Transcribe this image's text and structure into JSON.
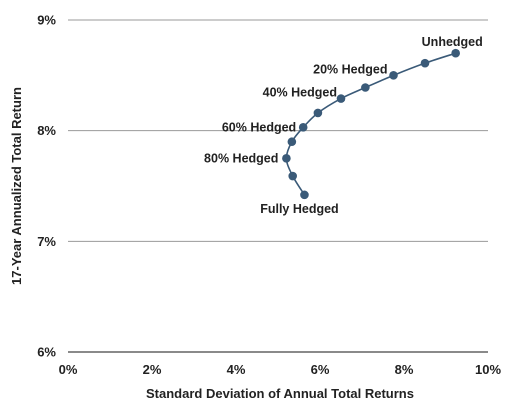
{
  "chart_data": {
    "type": "line",
    "xlabel": "Standard Deviation of Annual Total Returns",
    "ylabel": "17-Year Annualized Total Return",
    "xlim": [
      0,
      10
    ],
    "ylim": [
      6,
      9
    ],
    "x_ticks": [
      0,
      2,
      4,
      6,
      8,
      10
    ],
    "x_tick_labels": [
      "0%",
      "2%",
      "4%",
      "6%",
      "8%",
      "10%"
    ],
    "y_ticks": [
      6,
      7,
      8,
      9
    ],
    "y_tick_labels": [
      "6%",
      "7%",
      "8%",
      "9%"
    ],
    "grid": "horizontal",
    "legend": "none",
    "series": [
      {
        "x": [
          5.63,
          5.35,
          5.2,
          5.33,
          5.6,
          5.95,
          6.5,
          7.08,
          7.75,
          8.5,
          9.23
        ],
        "y": [
          7.42,
          7.59,
          7.75,
          7.9,
          8.03,
          8.16,
          8.29,
          8.39,
          8.5,
          8.61,
          8.7
        ],
        "color": "#3a5a78"
      }
    ],
    "annotations": [
      {
        "text": "Unhedged",
        "point": 10
      },
      {
        "text": "20% Hedged",
        "point": 8
      },
      {
        "text": "40% Hedged",
        "point": 6
      },
      {
        "text": "60% Hedged",
        "point": 4
      },
      {
        "text": "80% Hedged",
        "point": 2
      },
      {
        "text": "Fully Hedged",
        "point": 0
      }
    ],
    "colors": {
      "marker": "#3a5a78",
      "grid": "#9a9a9a",
      "axis": "#444444"
    }
  }
}
